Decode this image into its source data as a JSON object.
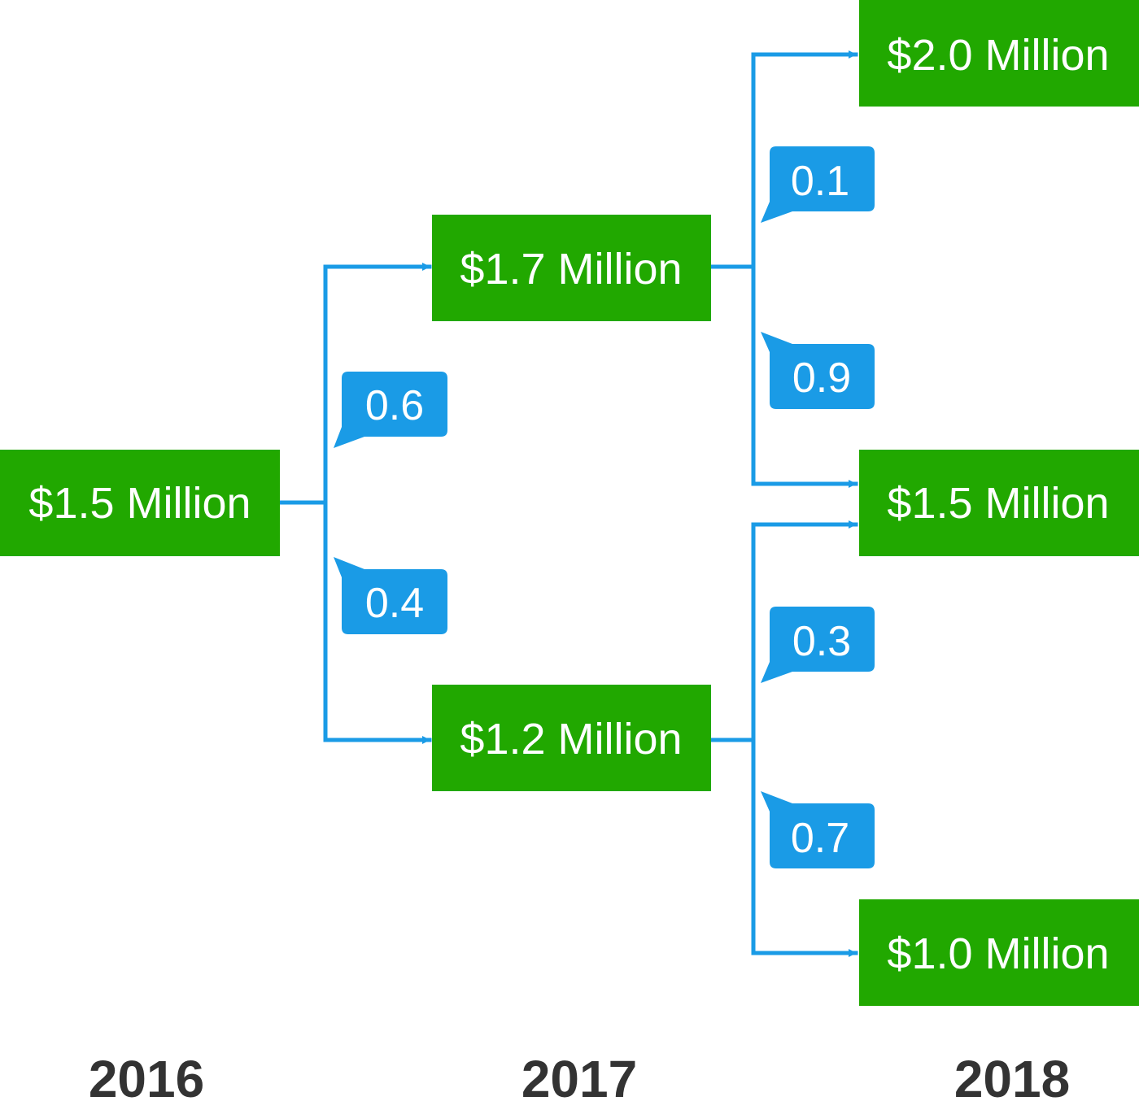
{
  "colors": {
    "node": "#21a800",
    "connector": "#1a9be6",
    "badge": "#1a9be6",
    "year_text": "#333333"
  },
  "nodes": {
    "root": "$1.5 Million",
    "y2017_high": "$1.7 Million",
    "y2017_low": "$1.2 Million",
    "y2018_top": "$2.0 Million",
    "y2018_mid": "$1.5 Million",
    "y2018_bottom": "$1.0 Million"
  },
  "probabilities": {
    "root_to_high": "0.6",
    "root_to_low": "0.4",
    "high_to_top": "0.1",
    "high_to_mid": "0.9",
    "low_to_mid": "0.3",
    "low_to_bottom": "0.7"
  },
  "years": [
    "2016",
    "2017",
    "2018"
  ]
}
